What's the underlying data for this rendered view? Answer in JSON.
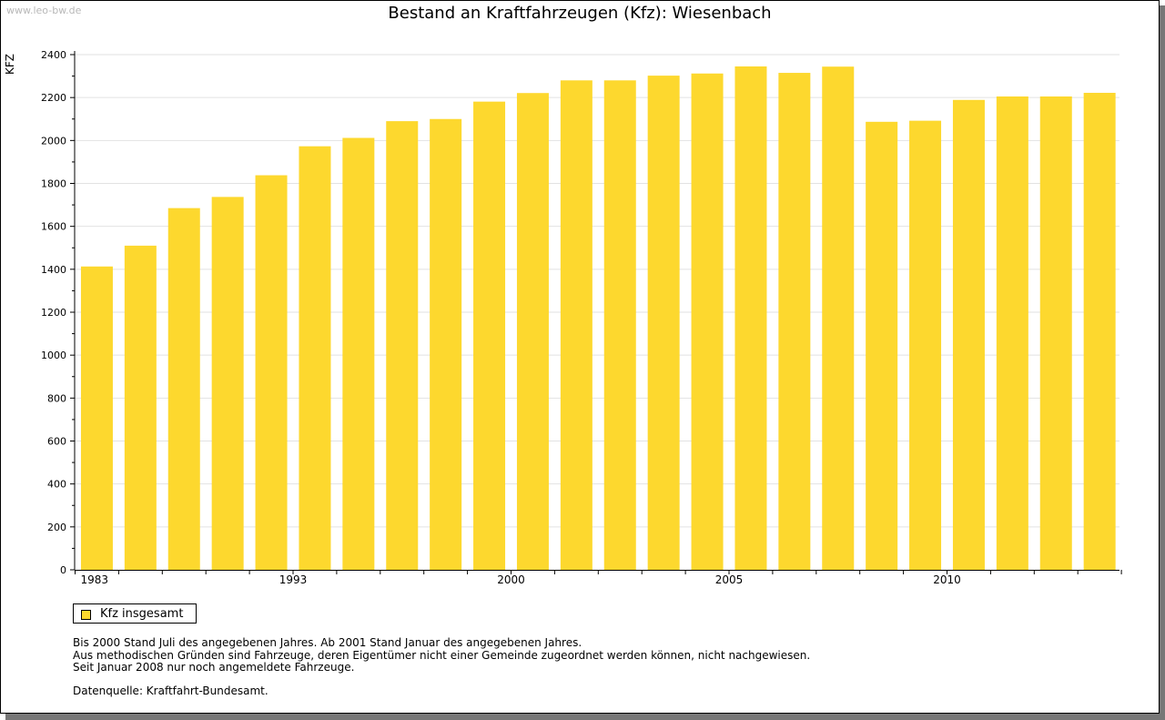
{
  "watermark": "www.leo-bw.de",
  "legend": {
    "label": "Kfz insgesamt"
  },
  "notes": [
    "Bis 2000 Stand Juli des angegebenen Jahres. Ab 2001 Stand Januar des angegebenen Jahres.",
    "Aus methodischen Gründen sind Fahrzeuge, deren Eigentümer nicht einer Gemeinde zugeordnet werden können, nicht nachgewiesen.",
    "Seit Januar 2008 nur noch angemeldete Fahrzeuge."
  ],
  "source": "Datenquelle: Kraftfahrt-Bundesamt.",
  "colors": {
    "bar": "#FDD82E",
    "grid": "#E2E2E2",
    "axis": "#000000"
  },
  "chart_data": {
    "type": "bar",
    "title": "Bestand an Kraftfahrzeugen (Kfz): Wiesenbach",
    "xlabel": "",
    "ylabel": "KFZ",
    "ylim": [
      0,
      2400
    ],
    "yticks": [
      0,
      200,
      400,
      600,
      800,
      1000,
      1200,
      1400,
      1600,
      1800,
      2000,
      2200,
      2400
    ],
    "grid": true,
    "legend_position": "bottom-left",
    "categories": [
      "1983",
      "",
      "",
      "",
      "",
      "1993",
      "",
      "",
      "",
      "",
      "2000",
      "",
      "",
      "",
      "",
      "2005",
      "",
      "",
      "",
      "",
      "2010",
      "",
      "",
      ""
    ],
    "series": [
      {
        "name": "Kfz insgesamt",
        "values": [
          1413,
          1510,
          1685,
          1737,
          1838,
          1973,
          2012,
          2090,
          2100,
          2181,
          2221,
          2280,
          2280,
          2302,
          2312,
          2345,
          2315,
          2344,
          2087,
          2092,
          2189,
          2205,
          2205,
          2222
        ]
      }
    ]
  }
}
